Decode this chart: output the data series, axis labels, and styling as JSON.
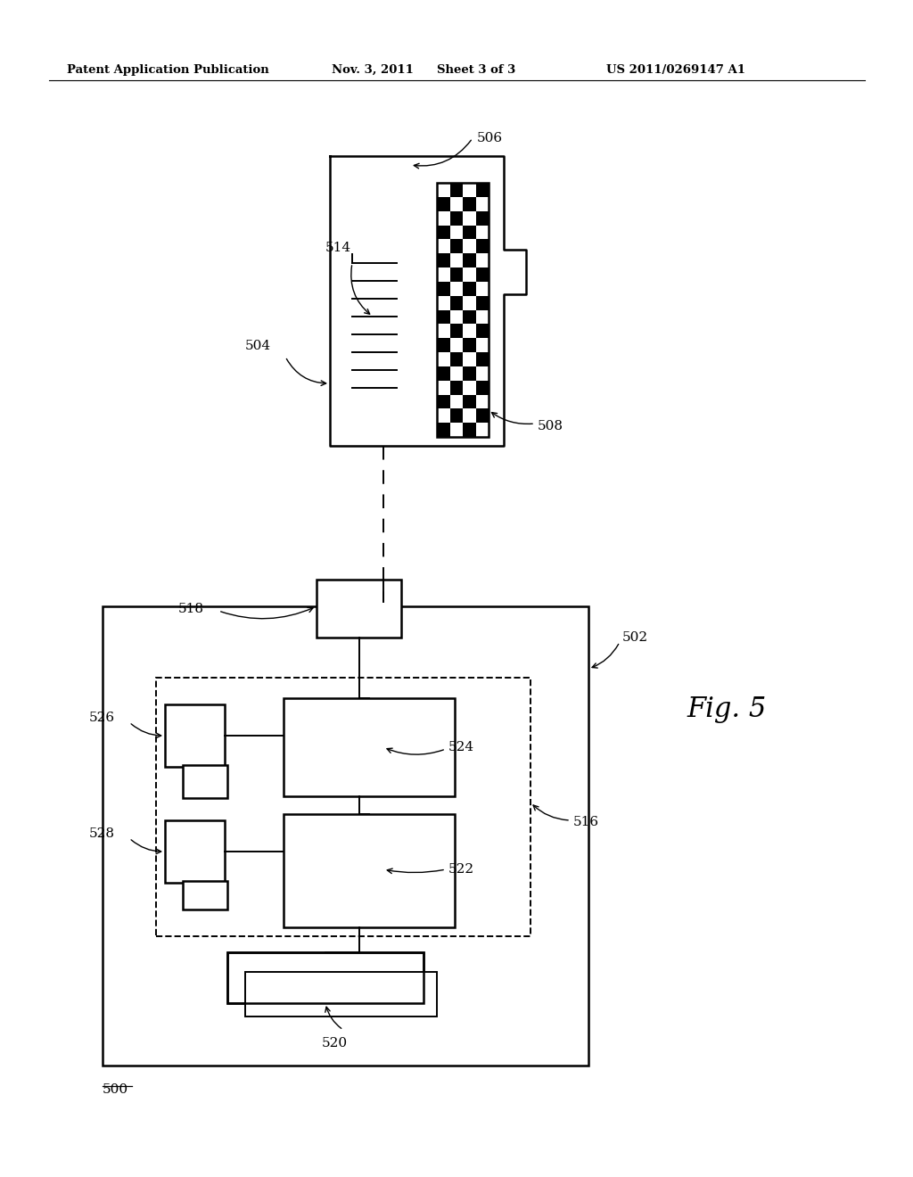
{
  "bg_color": "#ffffff",
  "header_text": "Patent Application Publication",
  "header_date": "Nov. 3, 2011",
  "header_sheet": "Sheet 3 of 3",
  "header_patent": "US 2011/0269147 A1",
  "fig_label": "Fig. 5"
}
